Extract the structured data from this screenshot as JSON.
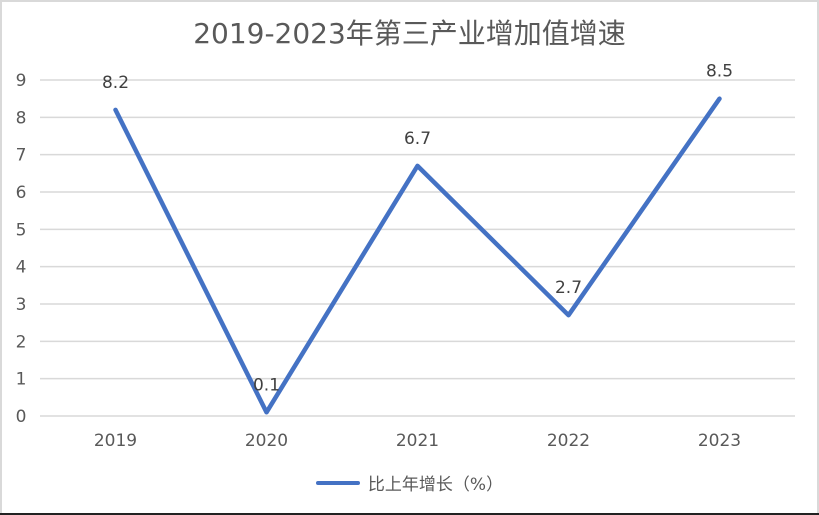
{
  "chart_data": {
    "type": "line",
    "title": "2019-2023年第三产业增加值增速",
    "categories": [
      "2019",
      "2020",
      "2021",
      "2022",
      "2023"
    ],
    "series": [
      {
        "name": "比上年增长（%）",
        "values": [
          8.2,
          0.1,
          6.7,
          2.7,
          8.5
        ],
        "color": "#4472c4"
      }
    ],
    "data_labels": [
      "8.2",
      "0.1",
      "6.7",
      "2.7",
      "8.5"
    ],
    "xlabel": "",
    "ylabel": "",
    "ylim": [
      0,
      9
    ],
    "yticks": [
      "0",
      "1",
      "2",
      "3",
      "4",
      "5",
      "6",
      "7",
      "8",
      "9"
    ],
    "grid": true,
    "legend_position": "bottom"
  },
  "colors": {
    "line": "#4472c4",
    "grid": "#d9d9d9",
    "text": "#595959",
    "label": "#404040"
  }
}
